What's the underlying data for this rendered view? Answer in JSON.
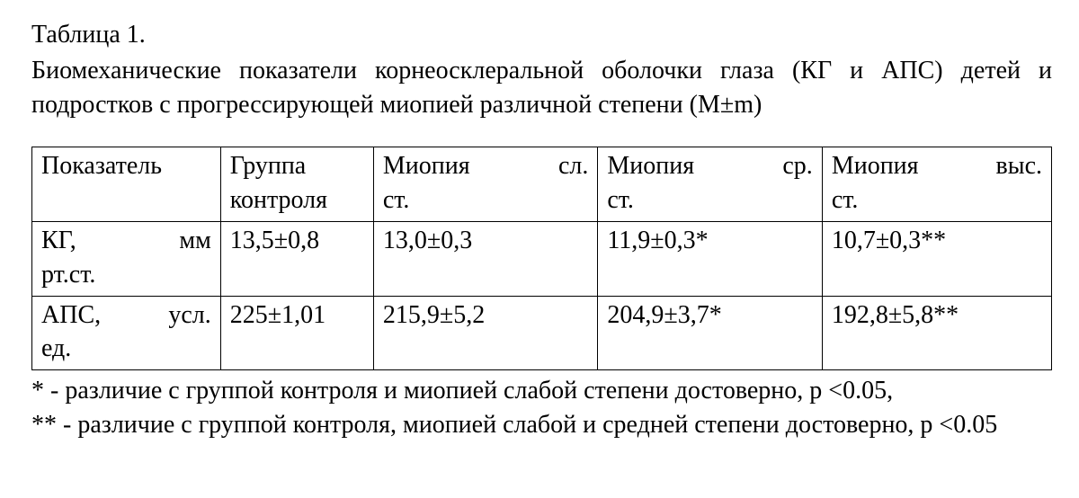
{
  "title": "Таблица 1.",
  "caption": "Биомеханические показатели корнеосклеральной оболочки глаза (КГ и АПС) детей и подростков с прогрессирующей миопией различной степени (М±m)",
  "table": {
    "type": "table",
    "border_color": "#000000",
    "background_color": "#ffffff",
    "font_family": "Times New Roman",
    "font_size_pt": 21,
    "col_widths_pct": [
      18.5,
      15,
      22,
      22,
      22.5
    ],
    "columns": [
      {
        "line1_left": "Показатель",
        "line1_right": "",
        "line2": ""
      },
      {
        "line1_left": "Группа",
        "line1_right": "",
        "line2": "контроля"
      },
      {
        "line1_left": "Миопия",
        "line1_right": "сл.",
        "line2": "ст."
      },
      {
        "line1_left": "Миопия",
        "line1_right": "ср.",
        "line2": "ст."
      },
      {
        "line1_left": "Миопия",
        "line1_right": "выс.",
        "line2": "ст."
      }
    ],
    "rows": [
      {
        "label_left": "КГ,",
        "label_right": "мм",
        "label_line2": "рт.ст.",
        "cells": [
          "13,5±0,8",
          "13,0±0,3",
          "11,9±0,3*",
          "10,7±0,3**"
        ]
      },
      {
        "label_left": "АПС,",
        "label_right": "усл.",
        "label_line2": "ед.",
        "cells": [
          "225±1,01",
          "215,9±5,2",
          "204,9±3,7*",
          "192,8±5,8**"
        ]
      }
    ]
  },
  "footnote1": "* - различие с группой контроля и миопией слабой степени достоверно, р <0.05,",
  "footnote2": "** - различие с группой контроля, миопией слабой и средней степени достоверно, р <0.05"
}
